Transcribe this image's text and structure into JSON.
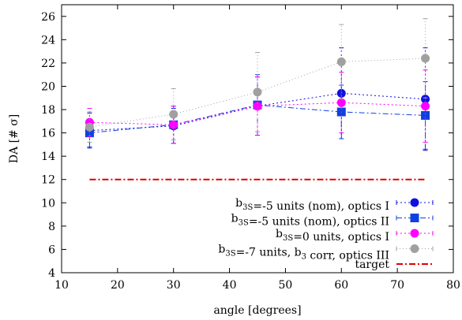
{
  "chart_data": {
    "type": "line",
    "xlabel": "angle [degrees]",
    "ylabel": "DA [# σ]",
    "xlim": [
      10,
      80
    ],
    "ylim": [
      4,
      27
    ],
    "xticks": [
      10,
      20,
      30,
      40,
      50,
      60,
      70,
      80
    ],
    "yticks": [
      4,
      6,
      8,
      10,
      12,
      14,
      16,
      18,
      20,
      22,
      24,
      26
    ],
    "grid": false,
    "legend_position": "bottom-right",
    "series": [
      {
        "name": "b3S=-5 units (nom), optics I",
        "label_parts": [
          [
            "b",
            "normal"
          ],
          [
            "3S",
            "sub"
          ],
          [
            "=-5 units (nom), optics I",
            "normal"
          ]
        ],
        "color": "#1010e0",
        "marker": "circle",
        "dash": "2,3",
        "x": [
          15,
          30,
          45,
          60,
          75
        ],
        "y": [
          16.2,
          16.6,
          18.3,
          19.4,
          18.9
        ],
        "err": [
          1.5,
          1.5,
          2.5,
          3.9,
          4.4
        ]
      },
      {
        "name": "b3S=-5 units (nom), optics II",
        "label_parts": [
          [
            "b",
            "normal"
          ],
          [
            "3S",
            "sub"
          ],
          [
            "=-5 units (nom), optics II",
            "normal"
          ]
        ],
        "color": "#1040e0",
        "marker": "square",
        "dash": "7,3,2,3",
        "x": [
          15,
          30,
          45,
          60,
          75
        ],
        "y": [
          16.0,
          16.7,
          18.4,
          17.8,
          17.5
        ],
        "err": [
          1.2,
          1.6,
          2.6,
          2.3,
          2.9
        ]
      },
      {
        "name": "b3S=0 units, optics I",
        "label_parts": [
          [
            "b",
            "normal"
          ],
          [
            "3S",
            "sub"
          ],
          [
            "=0 units, optics I",
            "normal"
          ]
        ],
        "color": "#ff00ff",
        "marker": "circle",
        "dash": "2,3",
        "x": [
          15,
          30,
          45,
          60,
          75
        ],
        "y": [
          16.9,
          16.7,
          18.3,
          18.6,
          18.3
        ],
        "err": [
          1.2,
          1.6,
          2.5,
          2.6,
          3.1
        ]
      },
      {
        "name": "b3S=-7 units, b3 corr, optics III",
        "label_parts": [
          [
            "b",
            "normal"
          ],
          [
            "3S",
            "sub"
          ],
          [
            "=-7 units, b",
            "normal"
          ],
          [
            "3",
            "sub"
          ],
          [
            " corr, optics III",
            "normal"
          ]
        ],
        "color": "#a0a0a0",
        "marker": "circle",
        "dash": "1,3",
        "x": [
          15,
          30,
          45,
          60,
          75
        ],
        "y": [
          16.5,
          17.6,
          19.5,
          22.1,
          22.4
        ],
        "err": [
          1.3,
          2.2,
          3.4,
          3.2,
          3.4
        ]
      },
      {
        "name": "target",
        "label_parts": [
          [
            "target",
            "normal"
          ]
        ],
        "color": "#e00000",
        "marker": "none",
        "dash": "8,3,2,3",
        "x": [
          15,
          75
        ],
        "y": [
          12,
          12
        ],
        "err": null
      }
    ]
  }
}
